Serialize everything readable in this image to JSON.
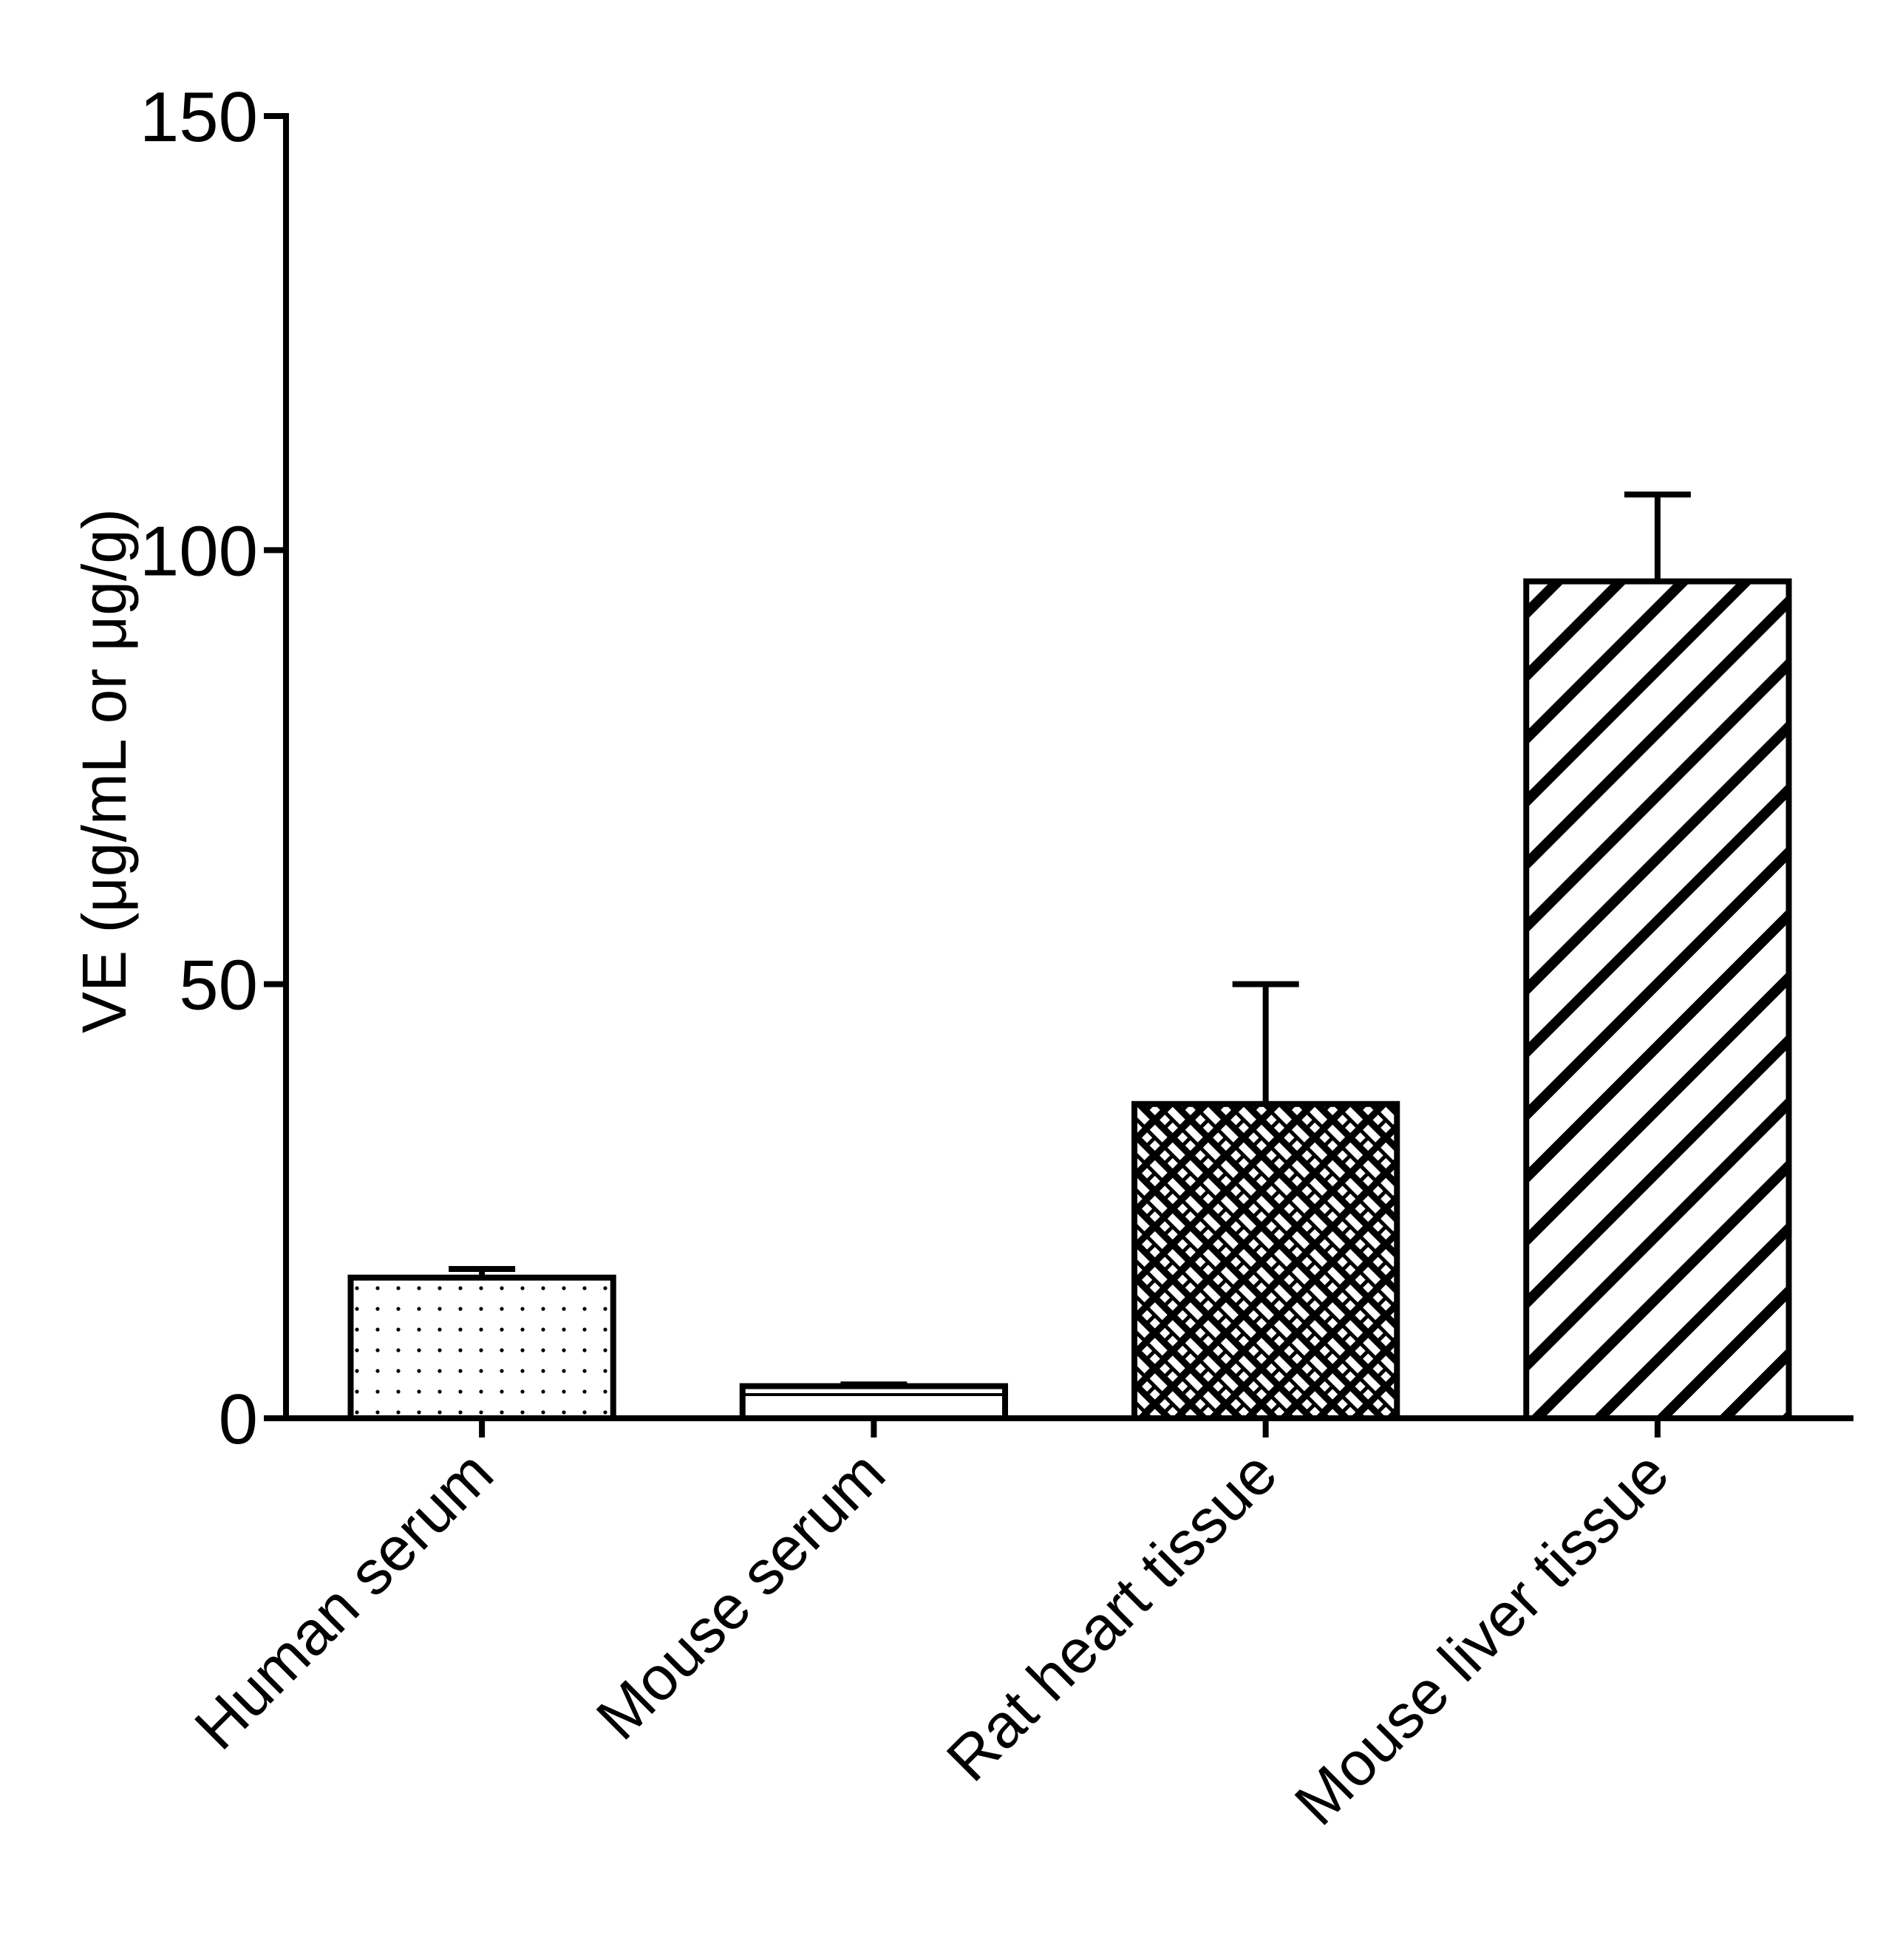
{
  "chart_data": {
    "type": "bar",
    "y_label": "VE (μg/mL or μg/g)",
    "categories": [
      "Human serum",
      "Mouse serum",
      "Rat heart tissue",
      "Mouse liver tissue"
    ],
    "values": [
      16.2,
      3.7,
      36.2,
      96.4
    ],
    "errors": [
      1,
      0.2,
      13.8,
      10
    ],
    "color": "#000000",
    "ylim": [
      0,
      150
    ],
    "yticks": [
      0,
      50,
      100,
      150
    ]
  }
}
